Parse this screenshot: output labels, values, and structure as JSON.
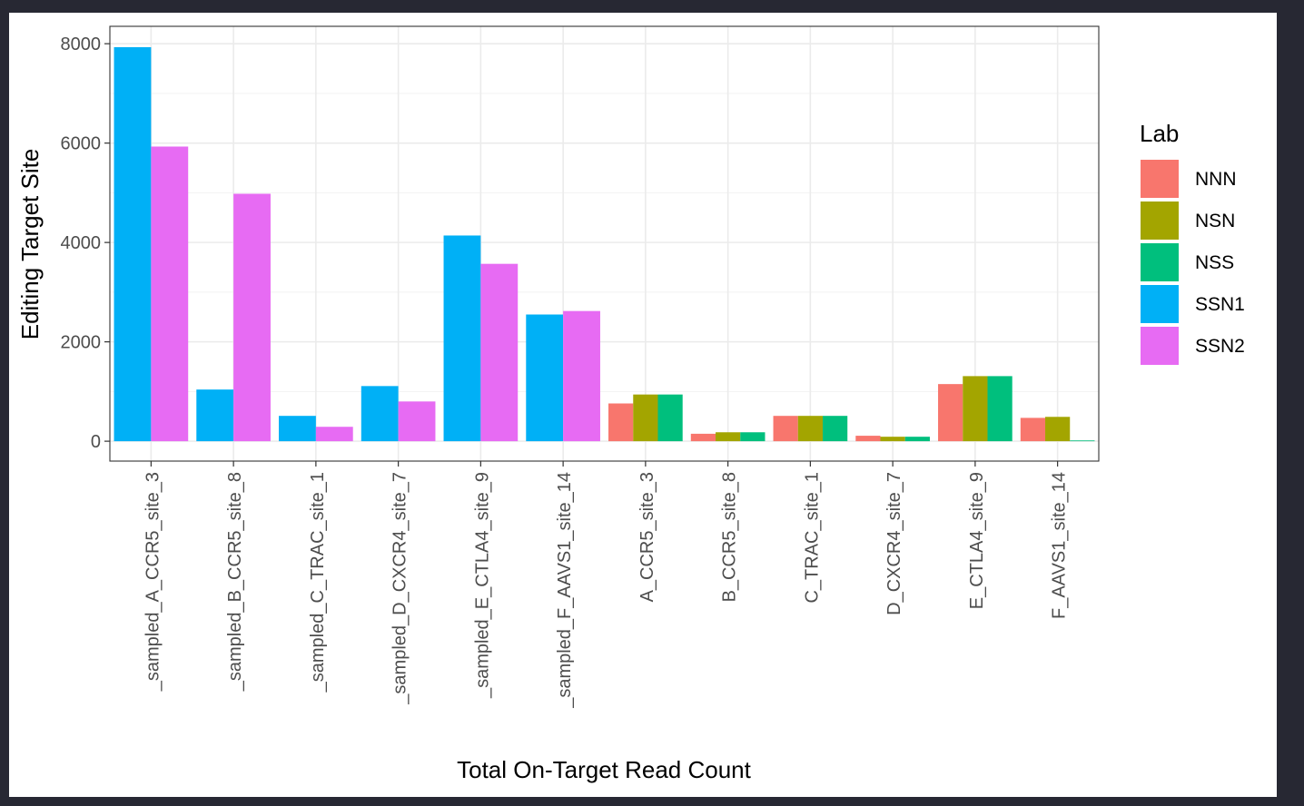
{
  "chart_data": {
    "type": "bar",
    "title": "",
    "xlabel": "Total On-Target Read Count",
    "ylabel": "Editing Target Site",
    "ylim": [
      -400,
      8350
    ],
    "yticks": [
      0,
      2000,
      4000,
      6000,
      8000
    ],
    "ytick_labels": [
      "0",
      "2000",
      "4000",
      "6000",
      "8000"
    ],
    "grid": true,
    "legend": {
      "title": "Lab",
      "position": "right"
    },
    "categories": [
      "_sampled_A_CCR5_site_3",
      "_sampled_B_CCR5_site_8",
      "_sampled_C_TRAC_site_1",
      "_sampled_D_CXCR4_site_7",
      "_sampled_E_CTLA4_site_9",
      "_sampled_F_AAVS1_site_14",
      "A_CCR5_site_3",
      "B_CCR5_site_8",
      "C_TRAC_site_1",
      "D_CXCR4_site_7",
      "E_CTLA4_site_9",
      "F_AAVS1_site_14"
    ],
    "series": [
      {
        "name": "NNN",
        "color": "#F8766D",
        "values": [
          null,
          null,
          null,
          null,
          null,
          null,
          760,
          150,
          510,
          110,
          1150,
          470
        ]
      },
      {
        "name": "NSN",
        "color": "#A3A500",
        "values": [
          null,
          null,
          null,
          null,
          null,
          null,
          940,
          180,
          510,
          90,
          1310,
          490
        ]
      },
      {
        "name": "NSS",
        "color": "#00BF7D",
        "values": [
          null,
          null,
          null,
          null,
          null,
          null,
          940,
          180,
          510,
          90,
          1310,
          15
        ]
      },
      {
        "name": "SSN1",
        "color": "#00B0F6",
        "values": [
          7930,
          1040,
          510,
          1110,
          4140,
          2550,
          null,
          null,
          null,
          null,
          null,
          null
        ]
      },
      {
        "name": "SSN2",
        "color": "#E76BF3",
        "values": [
          5930,
          4980,
          290,
          800,
          3570,
          2620,
          null,
          null,
          null,
          null,
          null,
          null
        ]
      }
    ]
  }
}
